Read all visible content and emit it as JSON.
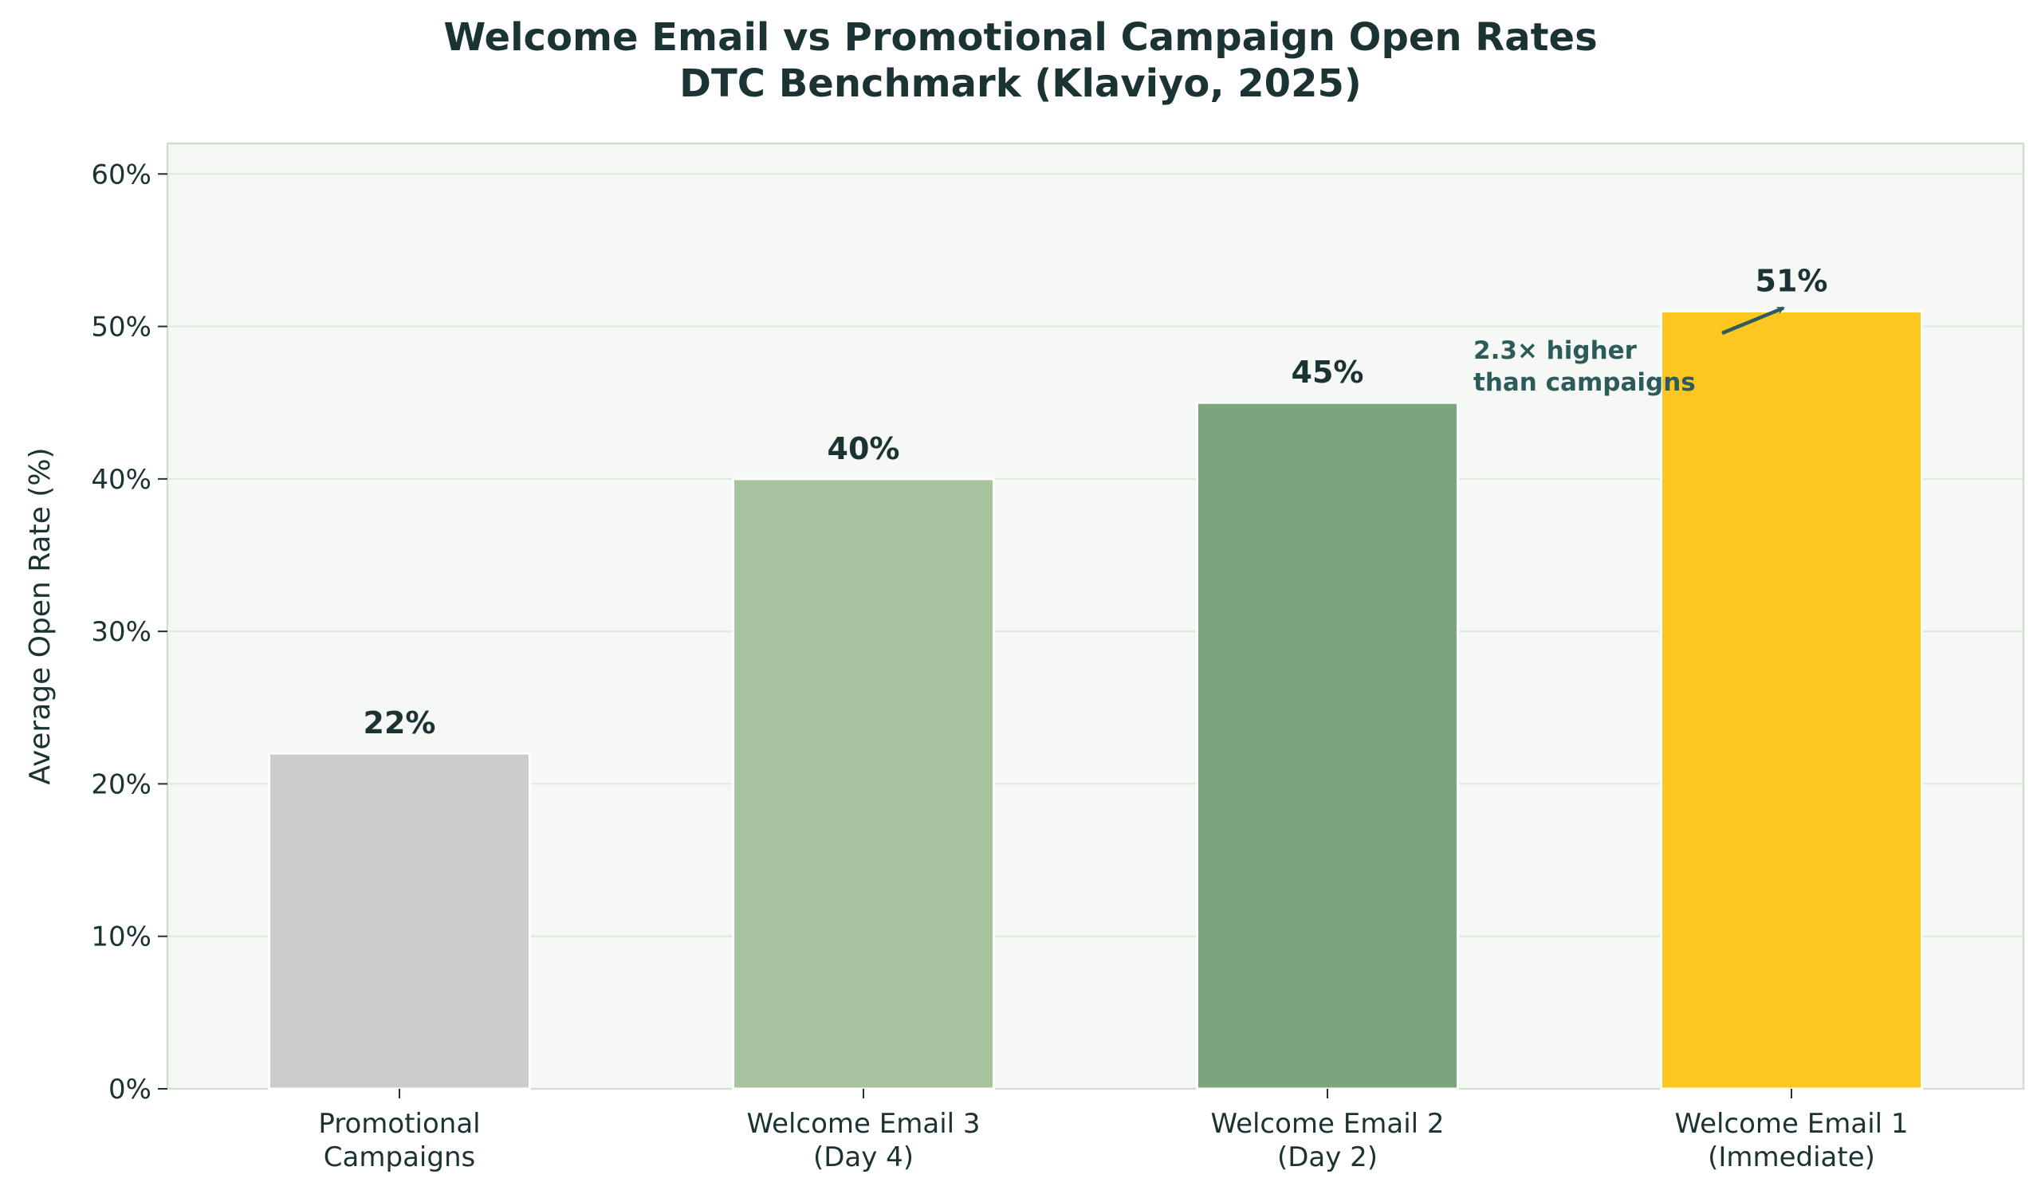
{
  "title": {
    "line1": "Welcome Email vs Promotional Campaign Open Rates",
    "line2": "DTC Benchmark (Klaviyo, 2025)"
  },
  "chart_data": {
    "type": "bar",
    "title": "Welcome Email vs Promotional Campaign Open Rates\nDTC Benchmark (Klaviyo, 2025)",
    "categories": [
      [
        "Promotional",
        "Campaigns"
      ],
      [
        "Welcome Email 3",
        "(Day 4)"
      ],
      [
        "Welcome Email 2",
        "(Day 2)"
      ],
      [
        "Welcome Email 1",
        "(Immediate)"
      ]
    ],
    "values": [
      22,
      40,
      45,
      51
    ],
    "value_labels": [
      "22%",
      "40%",
      "45%",
      "51%"
    ],
    "bar_colors": [
      "#cccccc",
      "#a8c49f",
      "#7ba57c",
      "#fdc620"
    ],
    "ylabel": "Average Open Rate (%)",
    "xlabel": "",
    "ylim": [
      0,
      62
    ],
    "yticks": [
      0,
      10,
      20,
      30,
      40,
      50,
      60
    ],
    "ytick_labels": [
      "0%",
      "10%",
      "20%",
      "30%",
      "40%",
      "50%",
      "60%"
    ],
    "grid": true,
    "annotation": {
      "lines": [
        "2.3× higher",
        "than campaigns"
      ],
      "points_to_category_index": 3,
      "color": "#2d5b5b"
    },
    "colors": {
      "plot_background": "#f6f8f5",
      "plot_border": "#cfe1cd",
      "grid": "#dfe8dd",
      "text": "#1b3333"
    }
  }
}
